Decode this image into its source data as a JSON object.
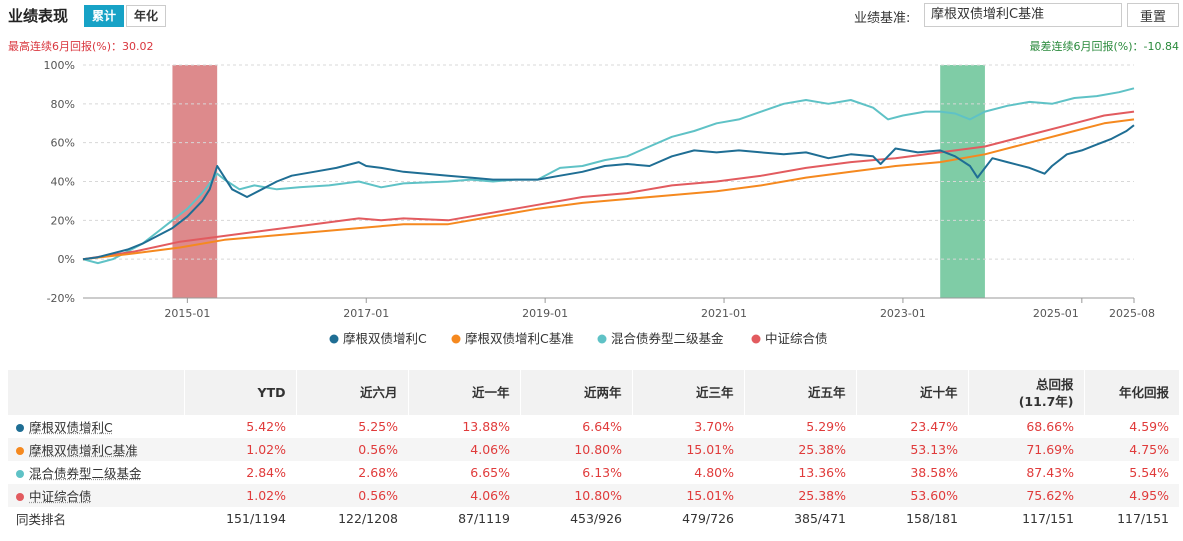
{
  "header": {
    "title": "业绩表现",
    "tabs": [
      {
        "label": "累计",
        "active": true
      },
      {
        "label": "年化",
        "active": false
      }
    ],
    "benchmark_label": "业绩基准:",
    "benchmark_value": "摩根双债增利C基准",
    "reset_label": "重置"
  },
  "stats": {
    "max_rally": "最高连续6月回报(%)：30.02",
    "max_drawdown": "最差连续6月回报(%)：-10.84"
  },
  "colors": {
    "fund": "#1f6e94",
    "benchmark": "#f5891f",
    "category": "#5fc2c6",
    "index": "#e25b5f",
    "highlight_red": "#dd8a8c",
    "highlight_green": "#7fcca6"
  },
  "chart_data": {
    "type": "line",
    "y_unit": "%",
    "ylim": [
      -20,
      100
    ],
    "y_ticks": [
      -20,
      0,
      20,
      40,
      60,
      80,
      100
    ],
    "y_tick_labels": [
      "-20%",
      "0%",
      "20%",
      "40%",
      "60%",
      "80%",
      "100%"
    ],
    "xlim": [
      "2013-11",
      "2025-08"
    ],
    "x_ticks": [
      "2015-01",
      "2017-01",
      "2019-01",
      "2021-01",
      "2023-01",
      "2025-01",
      "2025-08"
    ],
    "grid": "horizontal-dashed",
    "legend_position": "bottom",
    "highlight_periods": [
      {
        "start": "2014-11",
        "end": "2015-05",
        "color": "highlight_red"
      },
      {
        "start": "2023-06",
        "end": "2023-12",
        "color": "highlight_green"
      }
    ],
    "series": [
      {
        "name": "摩根双债增利C",
        "color_key": "fund",
        "points": [
          [
            "2013-11",
            0
          ],
          [
            "2014-01",
            1
          ],
          [
            "2014-03",
            3
          ],
          [
            "2014-05",
            5
          ],
          [
            "2014-07",
            8
          ],
          [
            "2014-09",
            12
          ],
          [
            "2014-11",
            16
          ],
          [
            "2015-01",
            22
          ],
          [
            "2015-03",
            30
          ],
          [
            "2015-04",
            36
          ],
          [
            "2015-05",
            48
          ],
          [
            "2015-06",
            42
          ],
          [
            "2015-07",
            36
          ],
          [
            "2015-09",
            32
          ],
          [
            "2015-11",
            36
          ],
          [
            "2016-01",
            40
          ],
          [
            "2016-03",
            43
          ],
          [
            "2016-06",
            45
          ],
          [
            "2016-09",
            47
          ],
          [
            "2016-12",
            50
          ],
          [
            "2017-01",
            48
          ],
          [
            "2017-03",
            47
          ],
          [
            "2017-06",
            45
          ],
          [
            "2017-09",
            44
          ],
          [
            "2017-12",
            43
          ],
          [
            "2018-03",
            42
          ],
          [
            "2018-06",
            41
          ],
          [
            "2018-09",
            41
          ],
          [
            "2018-12",
            41
          ],
          [
            "2019-03",
            43
          ],
          [
            "2019-06",
            45
          ],
          [
            "2019-09",
            48
          ],
          [
            "2019-12",
            49
          ],
          [
            "2020-03",
            48
          ],
          [
            "2020-06",
            53
          ],
          [
            "2020-09",
            56
          ],
          [
            "2020-12",
            55
          ],
          [
            "2021-03",
            56
          ],
          [
            "2021-06",
            55
          ],
          [
            "2021-09",
            54
          ],
          [
            "2021-12",
            55
          ],
          [
            "2022-03",
            52
          ],
          [
            "2022-06",
            54
          ],
          [
            "2022-09",
            53
          ],
          [
            "2022-10",
            49
          ],
          [
            "2022-12",
            57
          ],
          [
            "2023-03",
            55
          ],
          [
            "2023-06",
            56
          ],
          [
            "2023-08",
            53
          ],
          [
            "2023-10",
            48
          ],
          [
            "2023-11",
            42
          ],
          [
            "2024-01",
            52
          ],
          [
            "2024-03",
            50
          ],
          [
            "2024-06",
            47
          ],
          [
            "2024-08",
            44
          ],
          [
            "2024-09",
            48
          ],
          [
            "2024-11",
            54
          ],
          [
            "2025-01",
            56
          ],
          [
            "2025-03",
            59
          ],
          [
            "2025-05",
            62
          ],
          [
            "2025-07",
            66
          ],
          [
            "2025-08",
            69
          ]
        ]
      },
      {
        "name": "摩根双债增利C基准",
        "color_key": "benchmark",
        "points": [
          [
            "2013-11",
            0
          ],
          [
            "2014-06",
            3
          ],
          [
            "2014-12",
            6
          ],
          [
            "2015-06",
            10
          ],
          [
            "2015-12",
            12
          ],
          [
            "2016-06",
            14
          ],
          [
            "2016-12",
            16
          ],
          [
            "2017-06",
            18
          ],
          [
            "2017-12",
            18
          ],
          [
            "2018-06",
            22
          ],
          [
            "2018-12",
            26
          ],
          [
            "2019-06",
            29
          ],
          [
            "2019-12",
            31
          ],
          [
            "2020-06",
            33
          ],
          [
            "2020-12",
            35
          ],
          [
            "2021-06",
            38
          ],
          [
            "2021-12",
            42
          ],
          [
            "2022-06",
            45
          ],
          [
            "2022-12",
            48
          ],
          [
            "2023-06",
            50
          ],
          [
            "2023-12",
            54
          ],
          [
            "2024-06",
            60
          ],
          [
            "2024-12",
            66
          ],
          [
            "2025-04",
            70
          ],
          [
            "2025-08",
            72
          ]
        ]
      },
      {
        "name": "混合债券型二级基金",
        "color_key": "category",
        "points": [
          [
            "2013-11",
            0
          ],
          [
            "2014-01",
            -2
          ],
          [
            "2014-03",
            0
          ],
          [
            "2014-05",
            4
          ],
          [
            "2014-07",
            8
          ],
          [
            "2014-09",
            14
          ],
          [
            "2014-11",
            20
          ],
          [
            "2015-01",
            26
          ],
          [
            "2015-03",
            34
          ],
          [
            "2015-05",
            44
          ],
          [
            "2015-06",
            41
          ],
          [
            "2015-08",
            36
          ],
          [
            "2015-10",
            38
          ],
          [
            "2016-01",
            36
          ],
          [
            "2016-04",
            37
          ],
          [
            "2016-08",
            38
          ],
          [
            "2016-12",
            40
          ],
          [
            "2017-03",
            37
          ],
          [
            "2017-06",
            39
          ],
          [
            "2017-12",
            40
          ],
          [
            "2018-03",
            41
          ],
          [
            "2018-06",
            40
          ],
          [
            "2018-09",
            41
          ],
          [
            "2018-12",
            41
          ],
          [
            "2019-03",
            47
          ],
          [
            "2019-06",
            48
          ],
          [
            "2019-09",
            51
          ],
          [
            "2019-12",
            53
          ],
          [
            "2020-03",
            58
          ],
          [
            "2020-06",
            63
          ],
          [
            "2020-09",
            66
          ],
          [
            "2020-12",
            70
          ],
          [
            "2021-03",
            72
          ],
          [
            "2021-06",
            76
          ],
          [
            "2021-09",
            80
          ],
          [
            "2021-12",
            82
          ],
          [
            "2022-03",
            80
          ],
          [
            "2022-06",
            82
          ],
          [
            "2022-09",
            78
          ],
          [
            "2022-11",
            72
          ],
          [
            "2023-01",
            74
          ],
          [
            "2023-04",
            76
          ],
          [
            "2023-06",
            76
          ],
          [
            "2023-08",
            75
          ],
          [
            "2023-10",
            72
          ],
          [
            "2023-12",
            76
          ],
          [
            "2024-03",
            79
          ],
          [
            "2024-06",
            81
          ],
          [
            "2024-09",
            80
          ],
          [
            "2024-12",
            83
          ],
          [
            "2025-03",
            84
          ],
          [
            "2025-06",
            86
          ],
          [
            "2025-08",
            88
          ]
        ]
      },
      {
        "name": "中证综合债",
        "color_key": "index",
        "points": [
          [
            "2013-11",
            0
          ],
          [
            "2014-06",
            4
          ],
          [
            "2014-12",
            9
          ],
          [
            "2015-06",
            12
          ],
          [
            "2015-12",
            15
          ],
          [
            "2016-06",
            18
          ],
          [
            "2016-12",
            21
          ],
          [
            "2017-03",
            20
          ],
          [
            "2017-06",
            21
          ],
          [
            "2017-12",
            20
          ],
          [
            "2018-06",
            24
          ],
          [
            "2018-12",
            28
          ],
          [
            "2019-06",
            32
          ],
          [
            "2019-12",
            34
          ],
          [
            "2020-06",
            38
          ],
          [
            "2020-12",
            40
          ],
          [
            "2021-06",
            43
          ],
          [
            "2021-12",
            47
          ],
          [
            "2022-06",
            50
          ],
          [
            "2022-12",
            52
          ],
          [
            "2023-06",
            55
          ],
          [
            "2023-12",
            58
          ],
          [
            "2024-06",
            64
          ],
          [
            "2024-12",
            70
          ],
          [
            "2025-04",
            74
          ],
          [
            "2025-08",
            76
          ]
        ]
      }
    ]
  },
  "table": {
    "headers": [
      "",
      "YTD",
      "近六月",
      "近一年",
      "近两年",
      "近三年",
      "近五年",
      "近十年",
      "总回报\n(11.7年)",
      "年化回报"
    ],
    "rows": [
      {
        "name": "摩根双债增利C",
        "color_key": "fund",
        "values": [
          "5.42%",
          "5.25%",
          "13.88%",
          "6.64%",
          "3.70%",
          "5.29%",
          "23.47%",
          "68.66%",
          "4.59%"
        ]
      },
      {
        "name": "摩根双债增利C基准",
        "color_key": "benchmark",
        "values": [
          "1.02%",
          "0.56%",
          "4.06%",
          "10.80%",
          "15.01%",
          "25.38%",
          "53.13%",
          "71.69%",
          "4.75%"
        ]
      },
      {
        "name": "混合债券型二级基金",
        "color_key": "category",
        "values": [
          "2.84%",
          "2.68%",
          "6.65%",
          "6.13%",
          "4.80%",
          "13.36%",
          "38.58%",
          "87.43%",
          "5.54%"
        ]
      },
      {
        "name": "中证综合债",
        "color_key": "index",
        "values": [
          "1.02%",
          "0.56%",
          "4.06%",
          "10.80%",
          "15.01%",
          "25.38%",
          "53.60%",
          "75.62%",
          "4.95%"
        ]
      }
    ],
    "rank_row": {
      "name": "同类排名",
      "values": [
        "151/1194",
        "122/1208",
        "87/1119",
        "453/926",
        "479/726",
        "385/471",
        "158/181",
        "117/151",
        "117/151"
      ]
    }
  }
}
